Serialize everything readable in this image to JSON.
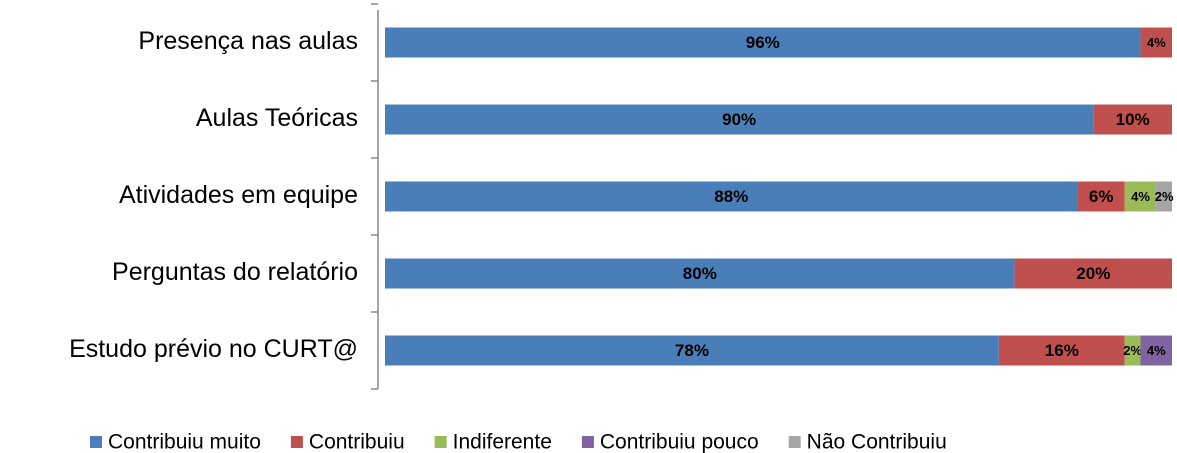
{
  "chart_data": {
    "type": "stacked-barh",
    "categories": [
      "Presença nas aulas",
      "Aulas Teóricas",
      "Atividades em equipe",
      "Perguntas do relatório",
      "Estudo prévio no CURT@"
    ],
    "xlim": [
      0,
      100
    ],
    "legend": "bottom",
    "series": [
      {
        "name": "Contribuiu muito",
        "color": "#4a7eb8",
        "values": [
          96,
          90,
          88,
          80,
          78
        ],
        "value_labels": [
          "96%",
          "90%",
          "88%",
          "80%",
          "78%"
        ]
      },
      {
        "name": "Contribuiu",
        "color": "#c0504d",
        "values": [
          4,
          10,
          6,
          20,
          16
        ],
        "value_labels": [
          "4%",
          "10%",
          "6%",
          "20%",
          "16%"
        ]
      },
      {
        "name": "Indiferente",
        "color": "#9bbb59",
        "values": [
          null,
          null,
          4,
          null,
          2
        ],
        "value_labels": [
          null,
          null,
          "4%",
          null,
          "2%"
        ]
      },
      {
        "name": "Contribuiu pouco",
        "color": "#8064a2",
        "values": [
          null,
          null,
          null,
          null,
          4
        ],
        "value_labels": [
          null,
          null,
          null,
          null,
          "4%"
        ]
      },
      {
        "name": "Não Contribuiu",
        "color": "#a5a5a5",
        "values": [
          null,
          null,
          2,
          null,
          null
        ],
        "value_labels": [
          null,
          null,
          "2%",
          null,
          null
        ]
      }
    ]
  }
}
